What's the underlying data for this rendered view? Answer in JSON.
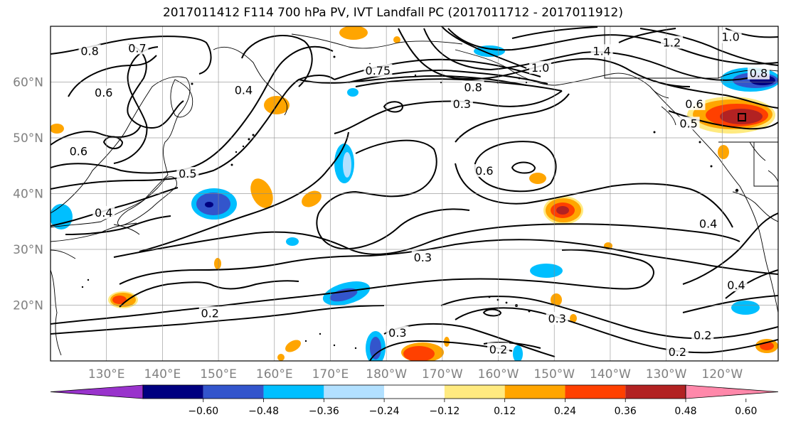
{
  "title": "2017011412 F114 700 hPa PV, IVT Landfall PC (2017011712 - 2017011912)",
  "map": {
    "lon_range": [
      120,
      250
    ],
    "lat_range": [
      10,
      70
    ],
    "lon_ticks": [
      {
        "lon": 130,
        "label": "130°E"
      },
      {
        "lon": 140,
        "label": "140°E"
      },
      {
        "lon": 150,
        "label": "150°E"
      },
      {
        "lon": 160,
        "label": "160°E"
      },
      {
        "lon": 170,
        "label": "170°E"
      },
      {
        "lon": 180,
        "label": "180°W"
      },
      {
        "lon": 190,
        "label": "170°W"
      },
      {
        "lon": 200,
        "label": "160°W"
      },
      {
        "lon": 210,
        "label": "150°W"
      },
      {
        "lon": 220,
        "label": "140°W"
      },
      {
        "lon": 230,
        "label": "130°W"
      },
      {
        "lon": 240,
        "label": "120°W"
      }
    ],
    "lat_ticks": [
      {
        "lat": 20,
        "label": "20°N"
      },
      {
        "lat": 30,
        "label": "30°N"
      },
      {
        "lat": 40,
        "label": "40°N"
      },
      {
        "lat": 50,
        "label": "50°N"
      },
      {
        "lat": 60,
        "label": "60°N"
      }
    ],
    "grid": true,
    "contour_field": "700 hPa PV",
    "contour_labels": [
      {
        "text": "0.8",
        "lon": 127,
        "lat": 65.5
      },
      {
        "text": "0.7",
        "lon": 135.5,
        "lat": 66
      },
      {
        "text": "0.6",
        "lon": 129.5,
        "lat": 58
      },
      {
        "text": "0.6",
        "lon": 125,
        "lat": 47.5
      },
      {
        "text": "0.4",
        "lon": 154.5,
        "lat": 58.5
      },
      {
        "text": "0.5",
        "lon": 144.5,
        "lat": 43.5
      },
      {
        "text": "0.4",
        "lon": 129.5,
        "lat": 36.5
      },
      {
        "text": "0.75",
        "lon": 178.5,
        "lat": 62
      },
      {
        "text": "0.8",
        "lon": 195.5,
        "lat": 59
      },
      {
        "text": "1.0",
        "lon": 207.5,
        "lat": 62.5
      },
      {
        "text": "1.4",
        "lon": 218.5,
        "lat": 65.5
      },
      {
        "text": "1.2",
        "lon": 231,
        "lat": 67
      },
      {
        "text": "1.0",
        "lon": 241.5,
        "lat": 68
      },
      {
        "text": "0.8",
        "lon": 246.5,
        "lat": 61.5
      },
      {
        "text": "0.6",
        "lon": 235,
        "lat": 56
      },
      {
        "text": "0.5",
        "lon": 234,
        "lat": 52.5
      },
      {
        "text": "0.6",
        "lon": 197.5,
        "lat": 44
      },
      {
        "text": "0.3",
        "lon": 193.5,
        "lat": 56
      },
      {
        "text": "0.3",
        "lon": 186.5,
        "lat": 28.5
      },
      {
        "text": "0.4",
        "lon": 237.5,
        "lat": 34.5
      },
      {
        "text": "0.4",
        "lon": 242.5,
        "lat": 23.5
      },
      {
        "text": "0.2",
        "lon": 148.5,
        "lat": 18.5
      },
      {
        "text": "0.3",
        "lon": 182,
        "lat": 15
      },
      {
        "text": "0.3",
        "lon": 210.5,
        "lat": 17.5
      },
      {
        "text": "0.2",
        "lon": 200,
        "lat": 12
      },
      {
        "text": "0.2",
        "lon": 236.5,
        "lat": 14.5
      },
      {
        "text": "0.2",
        "lon": 232,
        "lat": 11.5
      }
    ],
    "shaded_field": "IVT Landfall PC",
    "colors": [
      "#9933cc",
      "#000080",
      "#3355cc",
      "#00bfff",
      "#b2e0ff",
      "#ffffff",
      "#ffea80",
      "#ffa500",
      "#ff4000",
      "#b22222",
      "#ff88aa"
    ]
  },
  "colorbar": {
    "ticks": [
      "−0.60",
      "−0.48",
      "−0.36",
      "−0.24",
      "−0.12",
      "0.12",
      "0.24",
      "0.36",
      "0.48",
      "0.60"
    ],
    "colors": [
      "#9933cc",
      "#000080",
      "#3355cc",
      "#00bfff",
      "#b2e0ff",
      "#ffffff",
      "#ffea80",
      "#ffa500",
      "#ff4000",
      "#b22222",
      "#ff88aa"
    ]
  }
}
